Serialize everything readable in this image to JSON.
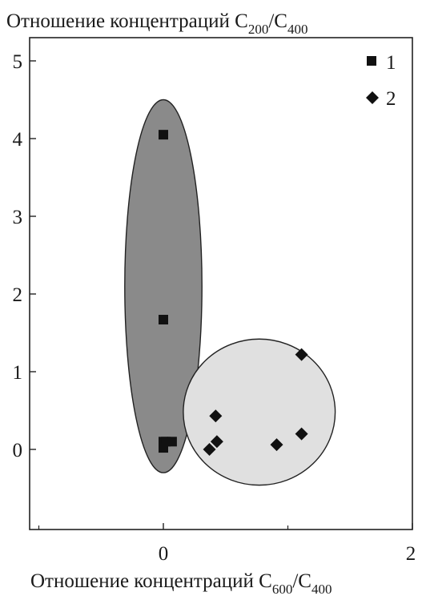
{
  "chart_data": {
    "type": "scatter",
    "title_prefix": "Отношение концентраций C",
    "title_sub1": "200",
    "title_sep": "/C",
    "title_sub2": "400",
    "xlabel_prefix": "Отношение концентраций C",
    "xlabel_sub1": "600",
    "xlabel_sep": "/C",
    "xlabel_sub2": "400",
    "xlim": [
      -1,
      2
    ],
    "ylim": [
      -1,
      5
    ],
    "x_ticks": [
      0,
      2
    ],
    "x_tick_labels": [
      "0",
      "2"
    ],
    "y_ticks": [
      0,
      1,
      2,
      3,
      4,
      5
    ],
    "y_tick_labels": [
      "0",
      "1",
      "2",
      "3",
      "4",
      "5"
    ],
    "legend_position": "top-right",
    "series": [
      {
        "name": "1",
        "marker": "square",
        "points": [
          [
            0.0,
            4.05
          ],
          [
            0.0,
            1.67
          ],
          [
            0.0,
            0.1
          ],
          [
            0.02,
            0.1
          ],
          [
            0.07,
            0.1
          ],
          [
            0.0,
            0.02
          ]
        ]
      },
      {
        "name": "2",
        "marker": "diamond",
        "points": [
          [
            1.11,
            1.22
          ],
          [
            0.42,
            0.43
          ],
          [
            0.43,
            0.1
          ],
          [
            0.37,
            0.0
          ],
          [
            0.91,
            0.06
          ],
          [
            1.11,
            0.2
          ]
        ]
      }
    ],
    "regions": [
      {
        "shape": "ellipse",
        "fill": "#8a8a8a",
        "cx": 0.0,
        "cy": 2.1,
        "rx": 0.31,
        "ry": 2.4
      },
      {
        "shape": "ellipse",
        "fill": "#e0e0e0",
        "cx": 0.77,
        "cy": 0.48,
        "rx": 0.61,
        "ry": 0.94
      }
    ],
    "grid": false
  }
}
